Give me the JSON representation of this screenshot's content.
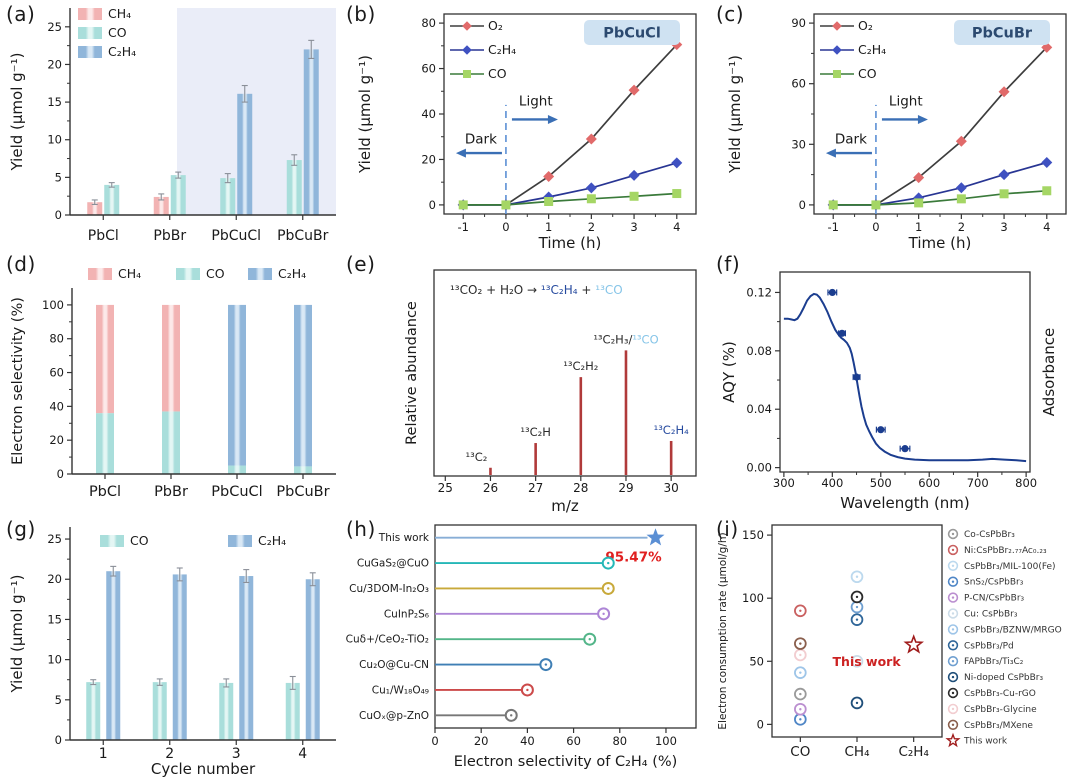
{
  "figure": {
    "background": "#ffffff"
  },
  "chart_data": [
    {
      "id": "a",
      "label": "(a)",
      "type": "grouped_bar",
      "ylabel": "Yield (µmol g⁻¹)",
      "categories": [
        "PbCl",
        "PbBr",
        "PbCuCl",
        "PbCuBr"
      ],
      "yticks": [
        0,
        5,
        10,
        15,
        20,
        25
      ],
      "ylim": [
        0,
        27.5
      ],
      "highlight": {
        "start_category": 2,
        "color": "#eaedf8"
      },
      "series": [
        {
          "name": "CH₄",
          "base": "#f2b3b3",
          "pale": "#fce9e9",
          "values": [
            1.7,
            2.4,
            null,
            null
          ],
          "errors": [
            0.3,
            0.4,
            null,
            null
          ]
        },
        {
          "name": "CO",
          "base": "#a9dedb",
          "pale": "#e4f6f4",
          "values": [
            4.0,
            5.3,
            4.9,
            7.3
          ],
          "errors": [
            0.3,
            0.4,
            0.6,
            0.7
          ]
        },
        {
          "name": "C₂H₄",
          "base": "#90b6da",
          "pale": "#d9e8f5",
          "values": [
            null,
            null,
            16.1,
            22.0
          ],
          "errors": [
            null,
            null,
            1.1,
            1.2
          ]
        }
      ]
    },
    {
      "id": "b",
      "label": "(b)",
      "type": "line_time",
      "title": "PbCuCl",
      "title_bg": "#cfe2f2",
      "title_color": "#2c4a70",
      "xlabel": "Time (h)",
      "ylabel": "Yield (µmol g⁻¹)",
      "x": [
        -1,
        0,
        1,
        2,
        3,
        4
      ],
      "xticks": [
        -1,
        0,
        1,
        2,
        3,
        4
      ],
      "yticks": [
        0,
        20,
        40,
        60,
        80
      ],
      "annotations": {
        "light": "Light",
        "dark": "Dark",
        "color": "#3a6fb5",
        "divider_color": "#5b8fd4"
      },
      "series": [
        {
          "name": "O₂",
          "marker": "diamond",
          "marker_color": "#e16a6a",
          "line_color": "#3d3d3d",
          "values": [
            0,
            0,
            12.5,
            29,
            50.5,
            70.5
          ]
        },
        {
          "name": "C₂H₄",
          "marker": "diamond",
          "marker_color": "#3f51c1",
          "line_color": "#283593",
          "values": [
            0,
            0,
            3.5,
            7.5,
            13,
            18.5
          ]
        },
        {
          "name": "CO",
          "marker": "square",
          "marker_color": "#a5d665",
          "line_color": "#3a7a3a",
          "values": [
            0,
            0,
            1.5,
            2.7,
            3.8,
            5
          ]
        }
      ]
    },
    {
      "id": "c",
      "label": "(c)",
      "type": "line_time",
      "title": "PbCuBr",
      "title_bg": "#cfe2f2",
      "title_color": "#2c4a70",
      "xlabel": "Time (h)",
      "ylabel": "Yield (µmol g⁻¹)",
      "x": [
        -1,
        0,
        1,
        2,
        3,
        4
      ],
      "xticks": [
        -1,
        0,
        1,
        2,
        3,
        4
      ],
      "yticks": [
        0,
        30,
        60,
        90
      ],
      "annotations": {
        "light": "Light",
        "dark": "Dark",
        "color": "#3a6fb5",
        "divider_color": "#5b8fd4"
      },
      "series": [
        {
          "name": "O₂",
          "marker": "diamond",
          "marker_color": "#e16a6a",
          "line_color": "#3d3d3d",
          "values": [
            0,
            0,
            13.5,
            31.5,
            56,
            78
          ]
        },
        {
          "name": "C₂H₄",
          "marker": "diamond",
          "marker_color": "#3f51c1",
          "line_color": "#283593",
          "values": [
            0,
            0,
            3.5,
            8.5,
            15,
            21
          ]
        },
        {
          "name": "CO",
          "marker": "square",
          "marker_color": "#a5d665",
          "line_color": "#3a7a3a",
          "values": [
            0,
            0,
            1,
            3,
            5.5,
            7
          ]
        }
      ]
    },
    {
      "id": "d",
      "label": "(d)",
      "type": "stacked_bar",
      "ylabel": "Electron selectivity (%)",
      "categories": [
        "PbCl",
        "PbBr",
        "PbCuCl",
        "PbCuBr"
      ],
      "yticks": [
        0,
        20,
        40,
        60,
        80,
        100
      ],
      "ylim": [
        0,
        110
      ],
      "legend": [
        "CH₄",
        "CO",
        "C₂H₄"
      ],
      "palette": {
        "CH₄": {
          "base": "#f2b3b3",
          "pale": "#fce9e9"
        },
        "CO": {
          "base": "#a9dedb",
          "pale": "#e4f6f4"
        },
        "C₂H₄": {
          "base": "#90b6da",
          "pale": "#d9e8f5"
        }
      },
      "stacks": [
        [
          {
            "s": "CO",
            "v": 36
          },
          {
            "s": "CH₄",
            "v": 64
          }
        ],
        [
          {
            "s": "CO",
            "v": 37
          },
          {
            "s": "CH₄",
            "v": 63
          }
        ],
        [
          {
            "s": "CO",
            "v": 5
          },
          {
            "s": "C₂H₄",
            "v": 95
          }
        ],
        [
          {
            "s": "CO",
            "v": 4.5
          },
          {
            "s": "C₂H₄",
            "v": 95.5
          }
        ]
      ]
    },
    {
      "id": "e",
      "label": "(e)",
      "type": "mass_spec",
      "xlabel": "m/z",
      "ylabel": "Relative abundance",
      "xticks": [
        25,
        26,
        27,
        28,
        29,
        30
      ],
      "stem_color": "#b03a3a",
      "reaction_parts": [
        {
          "t": "¹³CO₂ + H₂O ",
          "c": "#2b2b2b"
        },
        {
          "t": "→",
          "c": "#2b2b2b"
        },
        {
          "t": " ¹³C₂H₄",
          "c": "#274b9f"
        },
        {
          "t": " + ",
          "c": "#2b2b2b"
        },
        {
          "t": "¹³CO",
          "c": "#86c5e8"
        }
      ],
      "peaks": [
        {
          "mz": 26,
          "h": 4,
          "dx": -14,
          "parts": [
            {
              "t": "¹³C₂",
              "c": "#2b2b2b"
            }
          ]
        },
        {
          "mz": 27,
          "h": 16,
          "dx": 0,
          "parts": [
            {
              "t": "¹³C₂H",
              "c": "#2b2b2b"
            }
          ]
        },
        {
          "mz": 28,
          "h": 48,
          "dx": 0,
          "parts": [
            {
              "t": "¹³C₂H₂",
              "c": "#2b2b2b"
            }
          ]
        },
        {
          "mz": 29,
          "h": 61,
          "dx": 0,
          "parts": [
            {
              "t": "¹³C₂H₃",
              "c": "#2b2b2b"
            },
            {
              "t": "/",
              "c": "#2b2b2b"
            },
            {
              "t": "¹³CO",
              "c": "#86c5e8"
            }
          ]
        },
        {
          "mz": 30,
          "h": 17,
          "dx": 0,
          "parts": [
            {
              "t": "¹³C₂H₄",
              "c": "#274b9f"
            }
          ]
        }
      ]
    },
    {
      "id": "f",
      "label": "(f)",
      "type": "spectrum",
      "xlabel": "Wavelength (nm)",
      "ylabel": "AQY (%)",
      "ylabel_right": "Adsorbance",
      "xticks": [
        300,
        400,
        500,
        600,
        700,
        800
      ],
      "yticks": [
        0,
        0.04,
        0.08,
        0.12
      ],
      "color": "#1b3d8f",
      "curve": [
        [
          300,
          0.102
        ],
        [
          308,
          0.102
        ],
        [
          315,
          0.1015
        ],
        [
          322,
          0.101
        ],
        [
          328,
          0.102
        ],
        [
          334,
          0.105
        ],
        [
          340,
          0.109
        ],
        [
          348,
          0.1145
        ],
        [
          355,
          0.1175
        ],
        [
          362,
          0.119
        ],
        [
          368,
          0.1185
        ],
        [
          374,
          0.1165
        ],
        [
          382,
          0.112
        ],
        [
          390,
          0.1065
        ],
        [
          398,
          0.1
        ],
        [
          406,
          0.0945
        ],
        [
          412,
          0.0915
        ],
        [
          418,
          0.089
        ],
        [
          424,
          0.0875
        ],
        [
          430,
          0.0855
        ],
        [
          436,
          0.082
        ],
        [
          440,
          0.078
        ],
        [
          444,
          0.072
        ],
        [
          448,
          0.065
        ],
        [
          452,
          0.057
        ],
        [
          456,
          0.049
        ],
        [
          460,
          0.042
        ],
        [
          465,
          0.035
        ],
        [
          470,
          0.0295
        ],
        [
          476,
          0.025
        ],
        [
          482,
          0.021
        ],
        [
          490,
          0.0165
        ],
        [
          498,
          0.0135
        ],
        [
          508,
          0.011
        ],
        [
          520,
          0.0088
        ],
        [
          535,
          0.0072
        ],
        [
          550,
          0.0062
        ],
        [
          570,
          0.0055
        ],
        [
          600,
          0.005
        ],
        [
          640,
          0.005
        ],
        [
          680,
          0.005
        ],
        [
          710,
          0.0055
        ],
        [
          730,
          0.006
        ],
        [
          755,
          0.0055
        ],
        [
          780,
          0.005
        ],
        [
          800,
          0.0045
        ]
      ],
      "points": [
        {
          "x": 400,
          "y": 0.12,
          "xerr": 9
        },
        {
          "x": 420,
          "y": 0.092,
          "xerr": 7
        },
        {
          "x": 450,
          "y": 0.062,
          "xerr": 7
        },
        {
          "x": 500,
          "y": 0.026,
          "xerr": 9
        },
        {
          "x": 550,
          "y": 0.013,
          "xerr": 10
        }
      ]
    },
    {
      "id": "g",
      "label": "(g)",
      "type": "grouped_bar",
      "ylabel": "Yield (µmol g⁻¹)",
      "xlabel": "Cycle number",
      "categories": [
        "1",
        "2",
        "3",
        "4"
      ],
      "yticks": [
        0,
        5,
        10,
        15,
        20,
        25
      ],
      "ylim": [
        0,
        26.5
      ],
      "series": [
        {
          "name": "CO",
          "base": "#a9dedb",
          "pale": "#e4f6f4",
          "values": [
            7.2,
            7.2,
            7.1,
            7.1
          ],
          "errors": [
            0.3,
            0.4,
            0.5,
            0.8
          ]
        },
        {
          "name": "C₂H₄",
          "base": "#90b6da",
          "pale": "#d9e8f5",
          "values": [
            21.0,
            20.6,
            20.4,
            20.0
          ],
          "errors": [
            0.6,
            0.8,
            0.8,
            0.8
          ]
        }
      ]
    },
    {
      "id": "h",
      "label": "(h)",
      "type": "lollipop",
      "xlabel": "Electron selectivity of C₂H₄ (%)",
      "xticks": [
        0,
        20,
        40,
        60,
        80,
        100
      ],
      "annotation": {
        "text": "95.47%",
        "color": "#e02020"
      },
      "items": [
        {
          "label": "This work",
          "value": 95.47,
          "marker": "star",
          "color": "#88aed6",
          "marker_color": "#5b8fd4"
        },
        {
          "label": "CuGaS₂@CuO",
          "value": 75,
          "marker": "circle",
          "color": "#25b7b7"
        },
        {
          "label": "Cu/3DOM-In₂O₃",
          "value": 75,
          "marker": "circle",
          "color": "#c8a93a"
        },
        {
          "label": "CuInP₂S₆",
          "value": 73,
          "marker": "circle",
          "color": "#ad85d6"
        },
        {
          "label": "Cuδ+/CeO₂-TiO₂",
          "value": 67,
          "marker": "circle",
          "color": "#53b589"
        },
        {
          "label": "Cu₂O@Cu-CN",
          "value": 48,
          "marker": "circle",
          "color": "#3f7fb5"
        },
        {
          "label": "Cu₁/W₁₈O₄₉",
          "value": 40,
          "marker": "circle",
          "color": "#cc4a4a"
        },
        {
          "label": "CuOₓ@p-ZnO",
          "value": 33,
          "marker": "circle",
          "color": "#777777"
        }
      ]
    },
    {
      "id": "i",
      "label": "(i)",
      "type": "cat_scatter",
      "ylabel": "Electron consumption rate (µmol/g/h)",
      "categories": [
        "CO",
        "CH₄",
        "C₂H₄"
      ],
      "yticks": [
        0,
        50,
        100,
        150
      ],
      "this_work_label": {
        "text": "This work",
        "color": "#cc2222"
      },
      "points": [
        {
          "label": "Co-CsPbBr₃",
          "color": "#9a9a9a",
          "marker": "circle",
          "cat": 0,
          "value": 24
        },
        {
          "label": "Ni:CsPbBr₂.₇₇Ac₀.₂₃",
          "color": "#c96060",
          "marker": "circle",
          "cat": 0,
          "value": 90
        },
        {
          "label": "CsPbBr₃/MIL-100(Fe)",
          "color": "#bcd9ee",
          "marker": "circle",
          "cat": 1,
          "value": 117
        },
        {
          "label": "SnS₂/CsPbBr₃",
          "color": "#4f86c6",
          "marker": "circle",
          "cat": 0,
          "value": 4
        },
        {
          "label": "P-CN/CsPbBr₃",
          "color": "#bb8fd0",
          "marker": "circle",
          "cat": 0,
          "value": 12
        },
        {
          "label": "Cu: CsPbBr₃",
          "color": "#ccdce8",
          "marker": "circle",
          "cat": 1,
          "value": 50
        },
        {
          "label": "CsPbBr₃/BZNW/MRGO",
          "color": "#9ec5e8",
          "marker": "circle",
          "cat": 0,
          "value": 41
        },
        {
          "label": "CsPbBr₃/Pd",
          "color": "#2f6699",
          "marker": "circle",
          "cat": 1,
          "value": 83
        },
        {
          "label": "FAPbBr₃/Ti₃C₂",
          "color": "#6f9fd0",
          "marker": "circle",
          "cat": 1,
          "value": 93
        },
        {
          "label": "Ni-doped CsPbBr₃",
          "color": "#1f4e79",
          "marker": "circle",
          "cat": 1,
          "value": 17
        },
        {
          "label": "CsPbBr₃-Cu-rGO",
          "color": "#2b2b2b",
          "marker": "circle",
          "cat": 1,
          "value": 101
        },
        {
          "label": "CsPbBr₃-Glycine",
          "color": "#f2cdd0",
          "marker": "circle",
          "cat": 0,
          "value": 55
        },
        {
          "label": "CsPbBr₃/MXene",
          "color": "#8a5f4d",
          "marker": "circle",
          "cat": 0,
          "value": 64
        },
        {
          "label": "This work",
          "color": "#a01c1c",
          "marker": "star",
          "cat": 2,
          "value": 63
        }
      ]
    }
  ]
}
